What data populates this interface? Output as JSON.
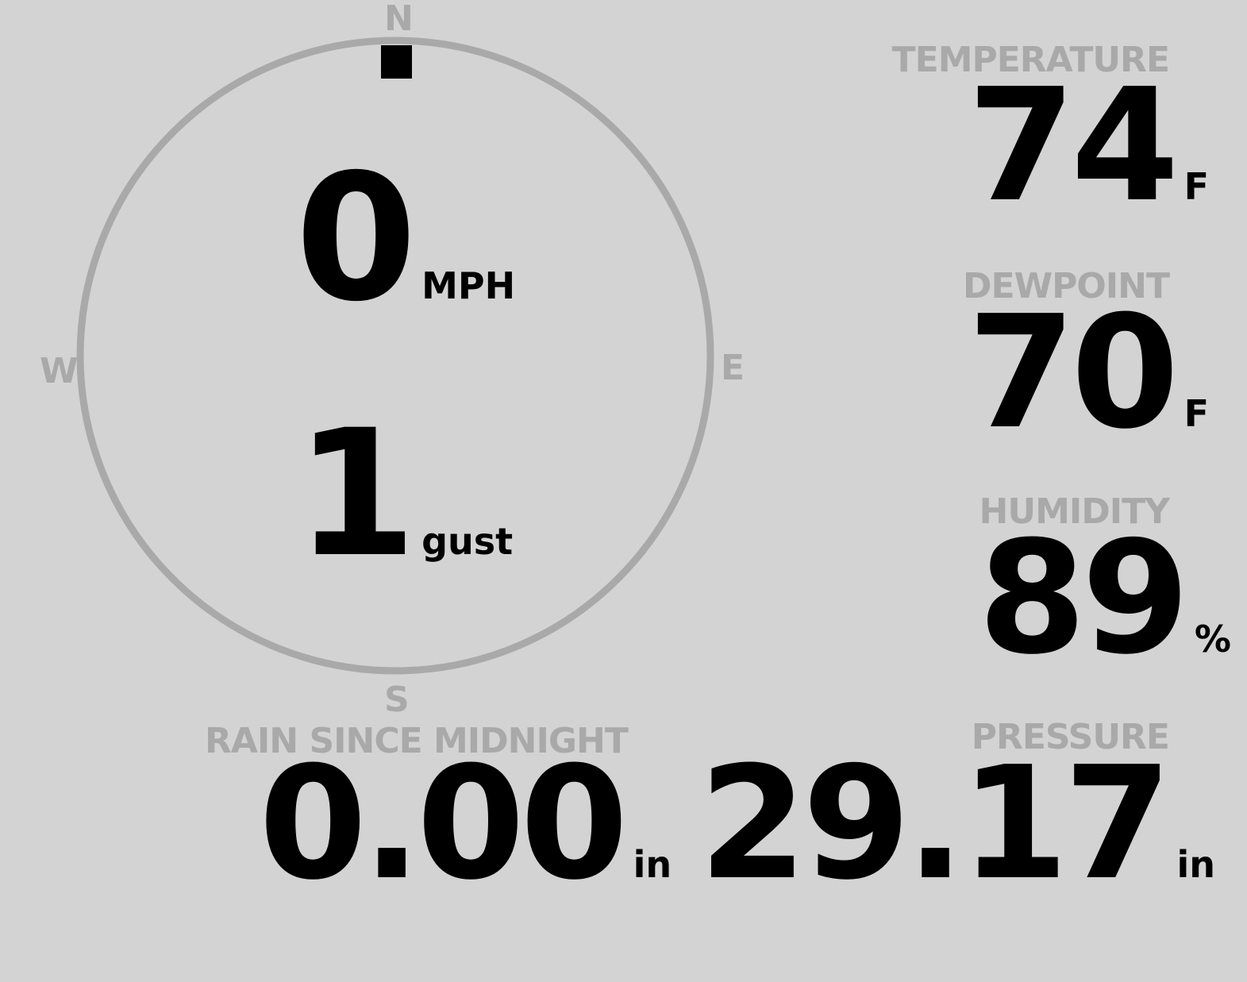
{
  "colors": {
    "background": "#d3d3d3",
    "label": "#a9a9a9",
    "value": "#000000"
  },
  "wind": {
    "compass": {
      "north": "N",
      "east": "E",
      "south": "S",
      "west": "W"
    },
    "direction_deg": 0,
    "speed": "0",
    "speed_unit": "MPH",
    "gust": "1",
    "gust_unit": "gust"
  },
  "temperature": {
    "label": "TEMPERATURE",
    "value": "74",
    "unit": "F"
  },
  "dewpoint": {
    "label": "DEWPOINT",
    "value": "70",
    "unit": "F"
  },
  "humidity": {
    "label": "HUMIDITY",
    "value": "89",
    "unit": "%"
  },
  "rain": {
    "label": "RAIN SINCE MIDNIGHT",
    "value": "0.00",
    "unit": "in"
  },
  "pressure": {
    "label": "PRESSURE",
    "value": "29.17",
    "unit": "in"
  }
}
